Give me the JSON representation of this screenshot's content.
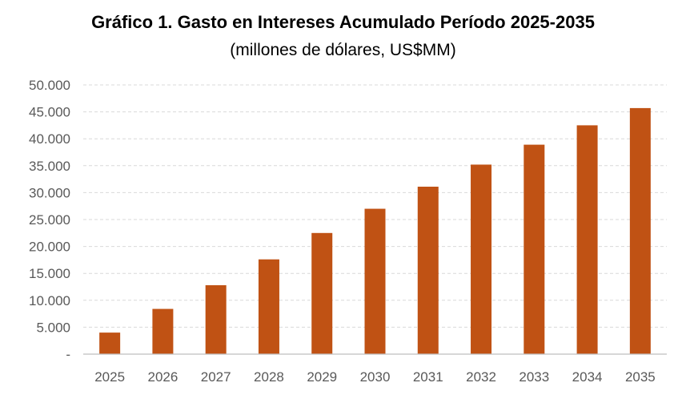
{
  "chart_data": {
    "type": "bar",
    "title": "Gráfico 1. Gasto en Intereses Acumulado Período 2025-2035",
    "subtitle": "(millones de dólares, US$MM)",
    "categories": [
      "2025",
      "2026",
      "2027",
      "2028",
      "2029",
      "2030",
      "2031",
      "2032",
      "2033",
      "2034",
      "2035"
    ],
    "values": [
      4000,
      8400,
      12800,
      17600,
      22500,
      27000,
      31100,
      35200,
      38900,
      42500,
      45700
    ],
    "ylim": [
      0,
      50000
    ],
    "yticks": [
      0,
      5000,
      10000,
      15000,
      20000,
      25000,
      30000,
      35000,
      40000,
      45000,
      50000
    ],
    "ytick_labels": [
      "-",
      "5.000",
      "10.000",
      "15.000",
      "20.000",
      "25.000",
      "30.000",
      "35.000",
      "40.000",
      "45.000",
      "50.000"
    ],
    "grid": true,
    "legend": "none",
    "colors": {
      "bar": "#C0504D",
      "bar_fill": "#C05214",
      "grid": "#D9D9D9",
      "axis": "#BFBFBF",
      "tick_text": "#595959"
    }
  }
}
